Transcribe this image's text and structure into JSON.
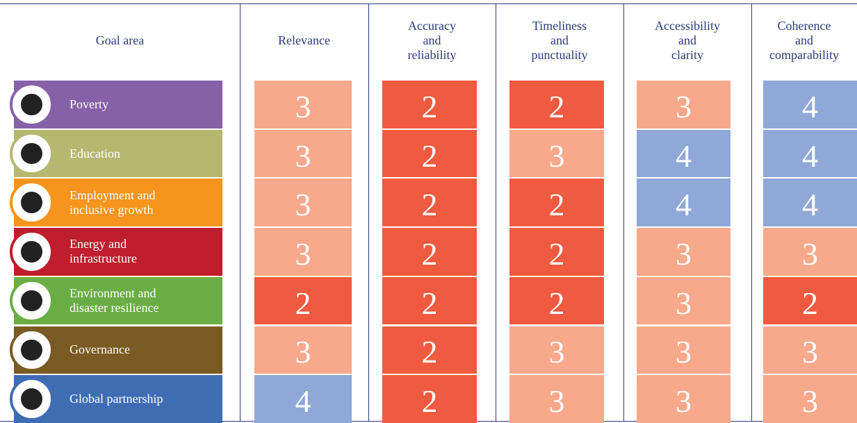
{
  "table": {
    "headers": [
      "Goal area",
      "Relevance",
      "Accuracy\nand\nreliability",
      "Timeliness\nand\npunctuality",
      "Accessibility\nand\nclarity",
      "Coherence\nand\ncomparability"
    ],
    "score_colors": {
      "2": "#f05a40",
      "3": "#f8a98c",
      "4": "#8fa8d7"
    },
    "rows": [
      {
        "goal": "Poverty",
        "color": "#8761a8",
        "scores": [
          3,
          2,
          2,
          3,
          4
        ]
      },
      {
        "goal": "Education",
        "color": "#b6b86f",
        "scores": [
          3,
          2,
          3,
          4,
          4
        ]
      },
      {
        "goal": "Employment and\ninclusive growth",
        "color": "#f7941d",
        "scores": [
          3,
          2,
          2,
          4,
          4
        ]
      },
      {
        "goal": "Energy and\ninfrastructure",
        "color": "#be1e2d",
        "scores": [
          3,
          2,
          2,
          3,
          3
        ]
      },
      {
        "goal": "Environment and\ndisaster resilience",
        "color": "#6aad45",
        "scores": [
          2,
          2,
          2,
          3,
          2
        ]
      },
      {
        "goal": "Governance",
        "color": "#7a5b24",
        "scores": [
          3,
          2,
          3,
          3,
          3
        ]
      },
      {
        "goal": "Global partnership",
        "color": "#3f6db4",
        "scores": [
          4,
          2,
          3,
          3,
          3
        ]
      }
    ]
  }
}
